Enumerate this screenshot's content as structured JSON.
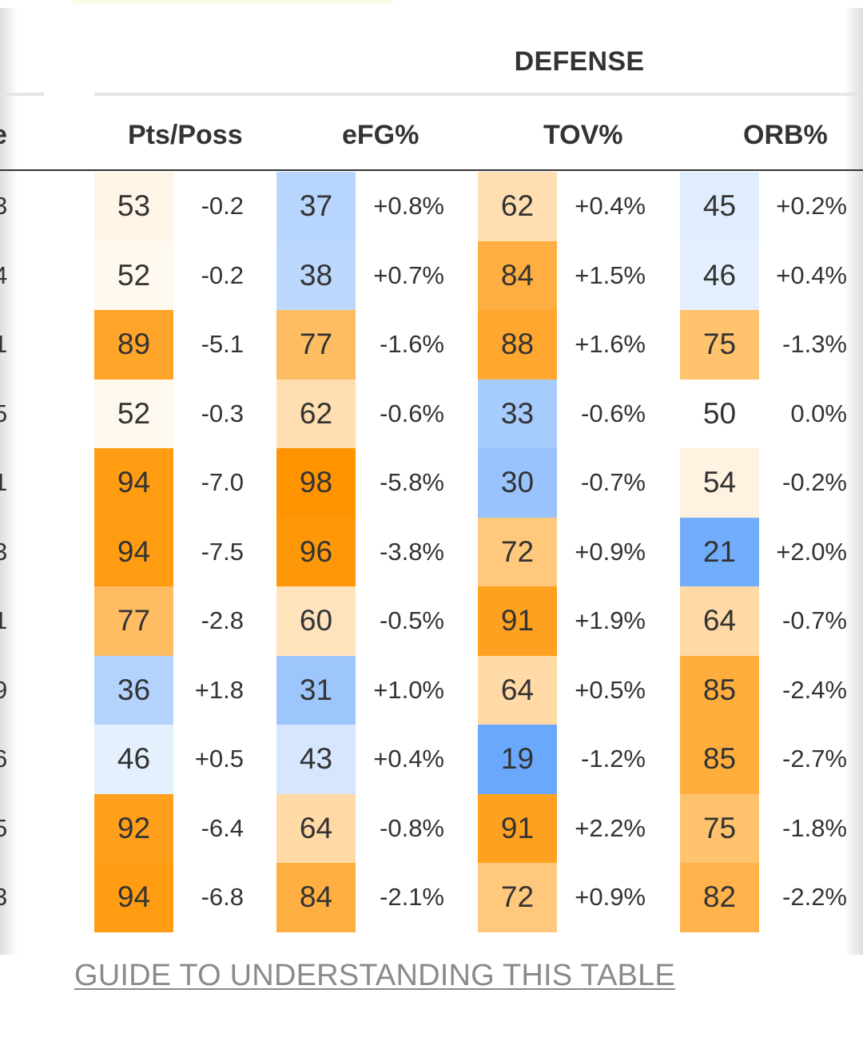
{
  "header": {
    "group_title": "DEFENSE",
    "clipped_column_fragment": "e",
    "columns": [
      "Pts/Poss",
      "eFG%",
      "TOV%",
      "ORB%"
    ]
  },
  "rows": [
    {
      "clip": "3",
      "cells": [
        [
          "53",
          "-0.2"
        ],
        [
          "37",
          "+0.8%"
        ],
        [
          "62",
          "+0.4%"
        ],
        [
          "45",
          "+0.2%"
        ]
      ]
    },
    {
      "clip": "4",
      "cells": [
        [
          "52",
          "-0.2"
        ],
        [
          "38",
          "+0.7%"
        ],
        [
          "84",
          "+1.5%"
        ],
        [
          "46",
          "+0.4%"
        ]
      ]
    },
    {
      "clip": "1",
      "cells": [
        [
          "89",
          "-5.1"
        ],
        [
          "77",
          "-1.6%"
        ],
        [
          "88",
          "+1.6%"
        ],
        [
          "75",
          "-1.3%"
        ]
      ]
    },
    {
      "clip": "5",
      "cells": [
        [
          "52",
          "-0.3"
        ],
        [
          "62",
          "-0.6%"
        ],
        [
          "33",
          "-0.6%"
        ],
        [
          "50",
          "0.0%"
        ]
      ]
    },
    {
      "clip": "1",
      "cells": [
        [
          "94",
          "-7.0"
        ],
        [
          "98",
          "-5.8%"
        ],
        [
          "30",
          "-0.7%"
        ],
        [
          "54",
          "-0.2%"
        ]
      ]
    },
    {
      "clip": "3",
      "cells": [
        [
          "94",
          "-7.5"
        ],
        [
          "96",
          "-3.8%"
        ],
        [
          "72",
          "+0.9%"
        ],
        [
          "21",
          "+2.0%"
        ]
      ]
    },
    {
      "clip": "1",
      "cells": [
        [
          "77",
          "-2.8"
        ],
        [
          "60",
          "-0.5%"
        ],
        [
          "91",
          "+1.9%"
        ],
        [
          "64",
          "-0.7%"
        ]
      ]
    },
    {
      "clip": "9",
      "cells": [
        [
          "36",
          "+1.8"
        ],
        [
          "31",
          "+1.0%"
        ],
        [
          "64",
          "+0.5%"
        ],
        [
          "85",
          "-2.4%"
        ]
      ]
    },
    {
      "clip": "6",
      "cells": [
        [
          "46",
          "+0.5"
        ],
        [
          "43",
          "+0.4%"
        ],
        [
          "19",
          "-1.2%"
        ],
        [
          "85",
          "-2.7%"
        ]
      ]
    },
    {
      "clip": "5",
      "cells": [
        [
          "92",
          "-6.4"
        ],
        [
          "64",
          "-0.8%"
        ],
        [
          "91",
          "+2.2%"
        ],
        [
          "75",
          "-1.8%"
        ]
      ]
    },
    {
      "clip": "3",
      "cells": [
        [
          "94",
          "-6.8"
        ],
        [
          "84",
          "-2.1%"
        ],
        [
          "72",
          "+0.9%"
        ],
        [
          "82",
          "-2.2%"
        ]
      ]
    }
  ],
  "colors": {
    "high": "#ff9400",
    "neutral": "#ffffff",
    "low": "#6aa8fb"
  },
  "footer": {
    "guide_link": "GUIDE TO UNDERSTANDING THIS TABLE"
  }
}
